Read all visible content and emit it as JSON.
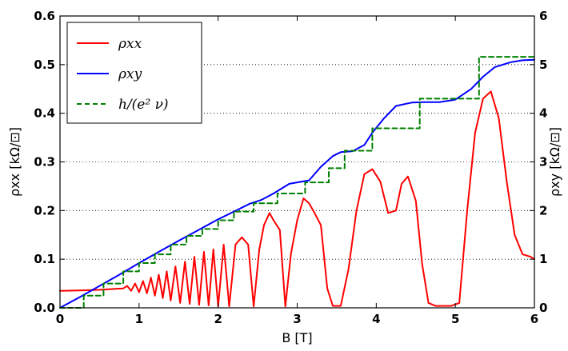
{
  "chart_data": {
    "type": "line",
    "xlabel": "B [T]",
    "ylabel_left": "ρxx [kΩ/⊡]",
    "ylabel_right": "ρxy [kΩ/⊡]",
    "xlim": [
      0,
      6
    ],
    "ylim_left": [
      0,
      0.6
    ],
    "ylim_right": [
      0,
      6
    ],
    "xticks": [
      "0",
      "1",
      "2",
      "3",
      "4",
      "5",
      "6"
    ],
    "yticks_left": [
      "0.0",
      "0.1",
      "0.2",
      "0.3",
      "0.4",
      "0.5",
      "0.6"
    ],
    "yticks_right": [
      "0",
      "1",
      "2",
      "3",
      "4",
      "5",
      "6"
    ],
    "grid": "horizontal dotted",
    "legend_position": "top-left",
    "series": [
      {
        "name": "ρxx",
        "color": "#ff0000",
        "style": "solid",
        "axis": "left",
        "x": [
          0,
          0.3,
          0.5,
          0.6,
          0.7,
          0.8,
          0.85,
          0.9,
          0.95,
          1.0,
          1.05,
          1.1,
          1.15,
          1.2,
          1.25,
          1.3,
          1.35,
          1.4,
          1.46,
          1.52,
          1.58,
          1.64,
          1.7,
          1.76,
          1.82,
          1.88,
          1.94,
          2.0,
          2.07,
          2.14,
          2.22,
          2.3,
          2.38,
          2.45,
          2.52,
          2.58,
          2.65,
          2.7,
          2.78,
          2.85,
          2.92,
          3.0,
          3.08,
          3.15,
          3.22,
          3.3,
          3.38,
          3.45,
          3.55,
          3.65,
          3.75,
          3.85,
          3.95,
          4.05,
          4.15,
          4.25,
          4.32,
          4.4,
          4.5,
          4.58,
          4.66,
          4.75,
          4.85,
          4.95,
          5.05,
          5.15,
          5.25,
          5.35,
          5.45,
          5.55,
          5.65,
          5.75,
          5.85,
          5.95,
          6.0
        ],
        "values": [
          0.035,
          0.036,
          0.037,
          0.038,
          0.039,
          0.04,
          0.045,
          0.035,
          0.05,
          0.032,
          0.055,
          0.03,
          0.062,
          0.025,
          0.068,
          0.02,
          0.075,
          0.015,
          0.085,
          0.01,
          0.095,
          0.008,
          0.105,
          0.006,
          0.115,
          0.005,
          0.12,
          0.003,
          0.13,
          0.003,
          0.13,
          0.145,
          0.13,
          0.003,
          0.12,
          0.17,
          0.195,
          0.18,
          0.16,
          0.003,
          0.11,
          0.18,
          0.225,
          0.215,
          0.195,
          0.17,
          0.04,
          0.004,
          0.004,
          0.08,
          0.2,
          0.275,
          0.285,
          0.26,
          0.195,
          0.2,
          0.255,
          0.27,
          0.22,
          0.09,
          0.01,
          0.004,
          0.004,
          0.004,
          0.01,
          0.2,
          0.36,
          0.43,
          0.445,
          0.39,
          0.26,
          0.15,
          0.11,
          0.105,
          0.1
        ]
      },
      {
        "name": "ρxy",
        "color": "#0000ff",
        "style": "solid",
        "axis": "right",
        "x": [
          0,
          0.25,
          0.5,
          0.75,
          1.0,
          1.25,
          1.5,
          1.75,
          2.0,
          2.2,
          2.4,
          2.55,
          2.7,
          2.9,
          3.0,
          3.15,
          3.3,
          3.45,
          3.55,
          3.7,
          3.85,
          3.95,
          4.1,
          4.25,
          4.45,
          4.6,
          4.8,
          5.0,
          5.2,
          5.35,
          5.5,
          5.7,
          5.85,
          6.0
        ],
        "values": [
          0,
          0.22,
          0.45,
          0.68,
          0.92,
          1.15,
          1.38,
          1.6,
          1.82,
          1.98,
          2.14,
          2.22,
          2.35,
          2.55,
          2.58,
          2.62,
          2.9,
          3.12,
          3.2,
          3.22,
          3.35,
          3.6,
          3.9,
          4.15,
          4.22,
          4.23,
          4.23,
          4.28,
          4.5,
          4.75,
          4.95,
          5.05,
          5.09,
          5.1
        ]
      },
      {
        "name": "h/(e² ν)",
        "color": "#008000",
        "style": "dashed",
        "axis": "right",
        "x": [
          0,
          0.25,
          0.5,
          0.75,
          1.0,
          1.25,
          1.5,
          1.75,
          2.0,
          2.25,
          2.5,
          2.75,
          3.0,
          3.25,
          3.5,
          3.75,
          4.0,
          4.25,
          4.5,
          4.75,
          5.0,
          5.25,
          5.5,
          5.75,
          6.0
        ],
        "values": [
          0,
          0.22,
          0.44,
          0.66,
          0.88,
          1.1,
          1.32,
          1.54,
          1.76,
          1.98,
          2.15,
          2.35,
          2.58,
          2.87,
          3.23,
          3.23,
          3.69,
          3.69,
          4.3,
          4.3,
          4.3,
          4.3,
          5.16,
          5.16,
          5.16
        ],
        "steps": [
          [
            0,
            0
          ],
          [
            0.3,
            0.25
          ],
          [
            0.55,
            0.5
          ],
          [
            0.8,
            0.75
          ],
          [
            1.0,
            0.92
          ],
          [
            1.2,
            1.1
          ],
          [
            1.4,
            1.3
          ],
          [
            1.6,
            1.48
          ],
          [
            1.8,
            1.62
          ],
          [
            2.0,
            1.8
          ],
          [
            2.2,
            1.98
          ],
          [
            2.45,
            2.15
          ],
          [
            2.75,
            2.35
          ],
          [
            3.1,
            2.58
          ],
          [
            3.4,
            2.87
          ],
          [
            3.6,
            3.23
          ],
          [
            3.95,
            3.69
          ],
          [
            4.55,
            4.3
          ],
          [
            5.3,
            5.16
          ],
          [
            6.0,
            5.16
          ]
        ]
      }
    ],
    "legend": [
      {
        "label": "ρxx",
        "color": "#ff0000",
        "style": "solid"
      },
      {
        "label": "ρxy",
        "color": "#0000ff",
        "style": "solid"
      },
      {
        "label": "h/(e² ν)",
        "color": "#008000",
        "style": "dashed"
      }
    ]
  }
}
